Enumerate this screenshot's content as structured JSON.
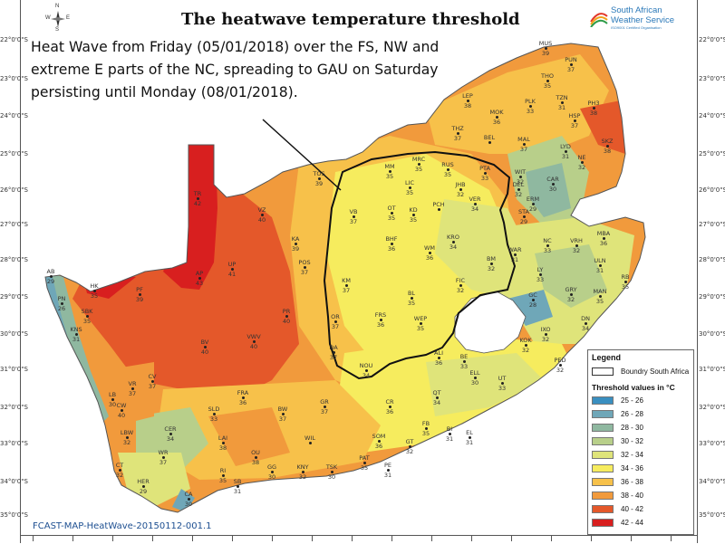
{
  "title": "The heatwave temperature threshold",
  "annotation": {
    "lines": [
      "Heat Wave from Friday (05/01/2018)  over the FS, NW and",
      "extreme E parts of the NC, spreading to GAU on Saturday",
      "persisting until Monday (08/01/2018)."
    ]
  },
  "logo": {
    "line1": "South African",
    "line2": "Weather Service",
    "sub": "ISO9001 Certified Organisation"
  },
  "compass": {
    "n": "N",
    "e": "E",
    "s": "S",
    "w": "W"
  },
  "footer": "FCAST-MAP-HeatWave-20150112-001.1",
  "lat_labels": [
    "22°0'0\"S",
    "23°0'0\"S",
    "24°0'0\"S",
    "25°0'0\"S",
    "26°0'0\"S",
    "27°0'0\"S",
    "28°0'0\"S",
    "29°0'0\"S",
    "30°0'0\"S",
    "31°0'0\"S",
    "32°0'0\"S",
    "33°0'0\"S",
    "34°0'0\"S",
    "35°0'0\"S"
  ],
  "legend": {
    "title": "Legend",
    "boundary_label": "Boundry South Africa",
    "threshold_title": "Threshold values in °C",
    "classes": [
      {
        "label": "25 - 26",
        "color": "#3a8fc0"
      },
      {
        "label": "26 - 28",
        "color": "#6fa7b8"
      },
      {
        "label": "28 - 30",
        "color": "#8fb8a0"
      },
      {
        "label": "30 - 32",
        "color": "#b8cf8a"
      },
      {
        "label": "32 - 34",
        "color": "#dfe47a"
      },
      {
        "label": "34 - 36",
        "color": "#f6ec5e"
      },
      {
        "label": "36 - 38",
        "color": "#f7c14a"
      },
      {
        "label": "38 - 40",
        "color": "#f19a3c"
      },
      {
        "label": "40 - 42",
        "color": "#e4582a"
      },
      {
        "label": "42 - 44",
        "color": "#d81f1f"
      }
    ]
  },
  "stations": [
    {
      "code": "MUS",
      "value": "39"
    },
    {
      "code": "PUN",
      "value": "37"
    },
    {
      "code": "THO",
      "value": "35"
    },
    {
      "code": "LEP",
      "value": "38"
    },
    {
      "code": "PLK",
      "value": "33"
    },
    {
      "code": "TZN",
      "value": "31"
    },
    {
      "code": "PH3",
      "value": "38"
    },
    {
      "code": "MOK",
      "value": "36"
    },
    {
      "code": "HSP",
      "value": "37"
    },
    {
      "code": "THZ",
      "value": "37"
    },
    {
      "code": "BEL",
      "value": ""
    },
    {
      "code": "MAL",
      "value": "37"
    },
    {
      "code": "LYD",
      "value": "31"
    },
    {
      "code": "SKZ",
      "value": "38"
    },
    {
      "code": "NE",
      "value": "32"
    },
    {
      "code": "MRC",
      "value": "35"
    },
    {
      "code": "MM",
      "value": "35"
    },
    {
      "code": "RUS",
      "value": "35"
    },
    {
      "code": "PTA",
      "value": "33"
    },
    {
      "code": "WIT",
      "value": "32"
    },
    {
      "code": "TOS",
      "value": "39"
    },
    {
      "code": "LIC",
      "value": "35"
    },
    {
      "code": "JHB",
      "value": "32"
    },
    {
      "code": "DEL",
      "value": "32"
    },
    {
      "code": "CAR",
      "value": "30"
    },
    {
      "code": "TR",
      "value": "42"
    },
    {
      "code": "OT",
      "value": "35"
    },
    {
      "code": "KD",
      "value": "35"
    },
    {
      "code": "VER",
      "value": "34"
    },
    {
      "code": "ERM",
      "value": "29"
    },
    {
      "code": "STA",
      "value": "29"
    },
    {
      "code": "VZ",
      "value": "40"
    },
    {
      "code": "VB",
      "value": "37"
    },
    {
      "code": "PCH",
      "value": ""
    },
    {
      "code": "MBA",
      "value": "36"
    },
    {
      "code": "KA",
      "value": "39"
    },
    {
      "code": "BHF",
      "value": "36"
    },
    {
      "code": "WM",
      "value": "36"
    },
    {
      "code": "KRO",
      "value": "34"
    },
    {
      "code": "NC",
      "value": "33"
    },
    {
      "code": "VRH",
      "value": "32"
    },
    {
      "code": "WAR",
      "value": "31"
    },
    {
      "code": "UP",
      "value": "41"
    },
    {
      "code": "POS",
      "value": "37"
    },
    {
      "code": "BM",
      "value": "32"
    },
    {
      "code": "LY",
      "value": "33"
    },
    {
      "code": "ULN",
      "value": "31"
    },
    {
      "code": "AB",
      "value": "29"
    },
    {
      "code": "AP",
      "value": "43"
    },
    {
      "code": "HK",
      "value": "35"
    },
    {
      "code": "PF",
      "value": "39"
    },
    {
      "code": "KM",
      "value": "37"
    },
    {
      "code": "FIC",
      "value": "32"
    },
    {
      "code": "GC",
      "value": "28"
    },
    {
      "code": "GRY",
      "value": "32"
    },
    {
      "code": "MAN",
      "value": "35"
    },
    {
      "code": "RB",
      "value": "35"
    },
    {
      "code": "PN",
      "value": "26"
    },
    {
      "code": "BL",
      "value": "35"
    },
    {
      "code": "SBK",
      "value": "35"
    },
    {
      "code": "PR",
      "value": "40"
    },
    {
      "code": "OR",
      "value": "37"
    },
    {
      "code": "FRS",
      "value": "36"
    },
    {
      "code": "WEP",
      "value": "35"
    },
    {
      "code": "DN",
      "value": "34"
    },
    {
      "code": "IXO",
      "value": "32"
    },
    {
      "code": "KNS",
      "value": "31"
    },
    {
      "code": "BV",
      "value": "40"
    },
    {
      "code": "VWV",
      "value": "40"
    },
    {
      "code": "DA",
      "value": "37"
    },
    {
      "code": "KOK",
      "value": "32"
    },
    {
      "code": "ALI",
      "value": "36"
    },
    {
      "code": "BE",
      "value": "33"
    },
    {
      "code": "PED",
      "value": "32"
    },
    {
      "code": "NOU",
      "value": "34"
    },
    {
      "code": "ELL",
      "value": "30"
    },
    {
      "code": "CV",
      "value": "37"
    },
    {
      "code": "UT",
      "value": "33"
    },
    {
      "code": "VR",
      "value": "37"
    },
    {
      "code": "LB",
      "value": "30"
    },
    {
      "code": "FRA",
      "value": "36"
    },
    {
      "code": "QT",
      "value": "34"
    },
    {
      "code": "CW",
      "value": "40"
    },
    {
      "code": "SLD",
      "value": "33"
    },
    {
      "code": "BW",
      "value": "37"
    },
    {
      "code": "GR",
      "value": "37"
    },
    {
      "code": "CR",
      "value": "36"
    },
    {
      "code": "CER",
      "value": "34"
    },
    {
      "code": "FB",
      "value": "35"
    },
    {
      "code": "BI",
      "value": "31"
    },
    {
      "code": "EL",
      "value": "31"
    },
    {
      "code": "LBW",
      "value": "32"
    },
    {
      "code": "LAI",
      "value": "38"
    },
    {
      "code": "WIL",
      "value": ""
    },
    {
      "code": "SOM",
      "value": "36"
    },
    {
      "code": "GT",
      "value": "32"
    },
    {
      "code": "WR",
      "value": "37"
    },
    {
      "code": "OU",
      "value": "38"
    },
    {
      "code": "PAT",
      "value": "35"
    },
    {
      "code": "CT",
      "value": "32"
    },
    {
      "code": "RI",
      "value": "35"
    },
    {
      "code": "GG",
      "value": "30"
    },
    {
      "code": "KNY",
      "value": "32"
    },
    {
      "code": "TSK",
      "value": "30"
    },
    {
      "code": "PE",
      "value": "31"
    },
    {
      "code": "HER",
      "value": "29"
    },
    {
      "code": "SB",
      "value": "31"
    },
    {
      "code": "CA",
      "value": "30"
    }
  ]
}
